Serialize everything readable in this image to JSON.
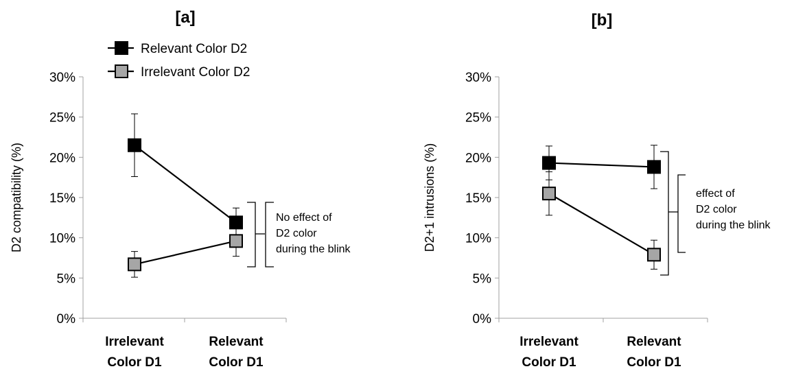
{
  "chart_data": [
    {
      "type": "line",
      "panel_label": "[a]",
      "ylabel": "D2 compatibility (%)",
      "xlabel": "",
      "categories": [
        [
          "Irrelevant",
          "Color D1"
        ],
        [
          "Relevant",
          "Color D1"
        ]
      ],
      "ylim": [
        0,
        30
      ],
      "yticks": [
        "0%",
        "5%",
        "10%",
        "15%",
        "20%",
        "25%",
        "30%"
      ],
      "grid": false,
      "legend_position": "top-left",
      "series": [
        {
          "name": "Relevant Color D2",
          "values": [
            21.5,
            11.9
          ],
          "err": [
            3.9,
            1.8
          ],
          "marker_color": "#000000"
        },
        {
          "name": "Irrelevant Color D2",
          "values": [
            6.7,
            9.6
          ],
          "err": [
            1.6,
            1.9
          ],
          "marker_color": "#a6a6a6"
        }
      ],
      "annotation": [
        "No effect of",
        "D2 color",
        "during the blink"
      ]
    },
    {
      "type": "line",
      "panel_label": "[b]",
      "ylabel": "D2+1 intrusions (%)",
      "xlabel": "",
      "categories": [
        [
          "Irrelevant",
          "Color D1"
        ],
        [
          "Relevant",
          "Color D1"
        ]
      ],
      "ylim": [
        0,
        30
      ],
      "yticks": [
        "0%",
        "5%",
        "10%",
        "15%",
        "20%",
        "25%",
        "30%"
      ],
      "grid": false,
      "series": [
        {
          "name": "Relevant Color D2",
          "values": [
            19.3,
            18.8
          ],
          "err": [
            2.1,
            2.7
          ],
          "marker_color": "#000000"
        },
        {
          "name": "Irrelevant Color D2",
          "values": [
            15.5,
            7.9
          ],
          "err": [
            2.7,
            1.8
          ],
          "marker_color": "#a6a6a6"
        }
      ],
      "annotation": [
        "effect of",
        "D2 color",
        "during the blink"
      ]
    }
  ]
}
